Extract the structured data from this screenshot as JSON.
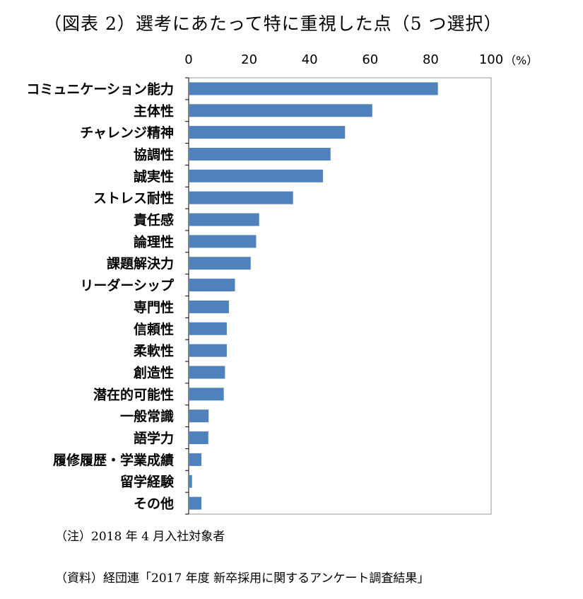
{
  "title": "（図表 2）選考にあたって特に重視した点（5 つ選択）",
  "notes": {
    "note": "（注）2018 年 4 月入社対象者",
    "source": "（資料）経団連「2017 年度 新卒採用に関するアンケート調査結果」"
  },
  "colors": {
    "bar": "#4f81bd",
    "axis": "#000000",
    "frame": "#9a9a9a"
  },
  "chart_data": {
    "type": "bar",
    "orientation": "horizontal",
    "title": "",
    "xlabel": "",
    "ylabel": "",
    "unit": "（%）",
    "xlim": [
      0,
      100
    ],
    "ticks": [
      0,
      20,
      40,
      60,
      80,
      100
    ],
    "tick_position": "top",
    "grid": false,
    "categories": [
      "コミュニケーション能力",
      "主体性",
      "チャレンジ精神",
      "協調性",
      "誠実性",
      "ストレス耐性",
      "責任感",
      "論理性",
      "課題解決力",
      "リーダーシップ",
      "専門性",
      "信頼性",
      "柔軟性",
      "創造性",
      "潜在的可能性",
      "一般常識",
      "語学力",
      "履修履歴・学業成績",
      "留学経験",
      "その他"
    ],
    "values": [
      82.4,
      60.7,
      51.7,
      46.9,
      44.4,
      34.5,
      23.3,
      22.3,
      20.5,
      15.3,
      13.3,
      12.6,
      12.6,
      12.0,
      11.6,
      6.6,
      6.5,
      4.2,
      1.1,
      4.2
    ]
  }
}
